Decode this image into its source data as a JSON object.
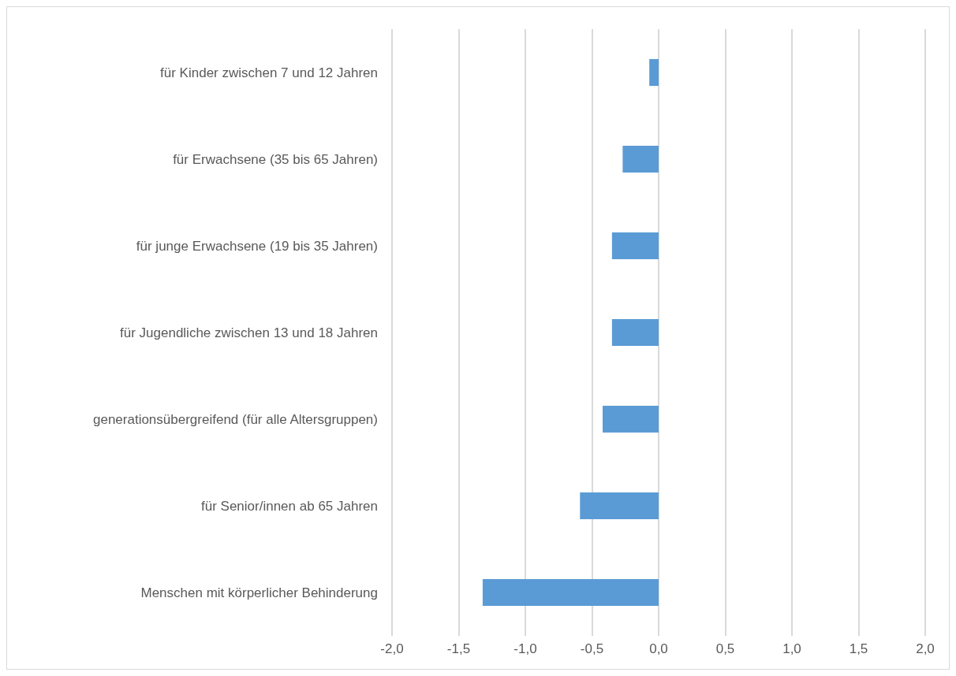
{
  "chart_data": {
    "type": "bar",
    "orientation": "horizontal",
    "categories": [
      "für Kinder zwischen 7 und 12 Jahren",
      "für Erwachsene (35 bis 65 Jahren)",
      "für junge Erwachsene (19 bis 35 Jahren)",
      "für Jugendliche zwischen 13 und 18 Jahren",
      "generationsübergreifend (für alle Altersgruppen)",
      "für Senior/innen ab 65 Jahren",
      "Menschen mit körperlicher Behinderung"
    ],
    "values": [
      -0.07,
      -0.27,
      -0.35,
      -0.35,
      -0.42,
      -0.59,
      -1.32
    ],
    "color": "#5b9bd5",
    "xlim": [
      -2,
      2
    ],
    "xticks": [
      {
        "value": -2,
        "label": "-2,0"
      },
      {
        "value": -1.5,
        "label": "-1,5"
      },
      {
        "value": -1,
        "label": "-1,0"
      },
      {
        "value": -0.5,
        "label": "-0,5"
      },
      {
        "value": 0,
        "label": "0,0"
      },
      {
        "value": 0.5,
        "label": "0,5"
      },
      {
        "value": 1,
        "label": "1,0"
      },
      {
        "value": 1.5,
        "label": "1,5"
      },
      {
        "value": 2,
        "label": "2,0"
      }
    ],
    "grid": "x"
  }
}
